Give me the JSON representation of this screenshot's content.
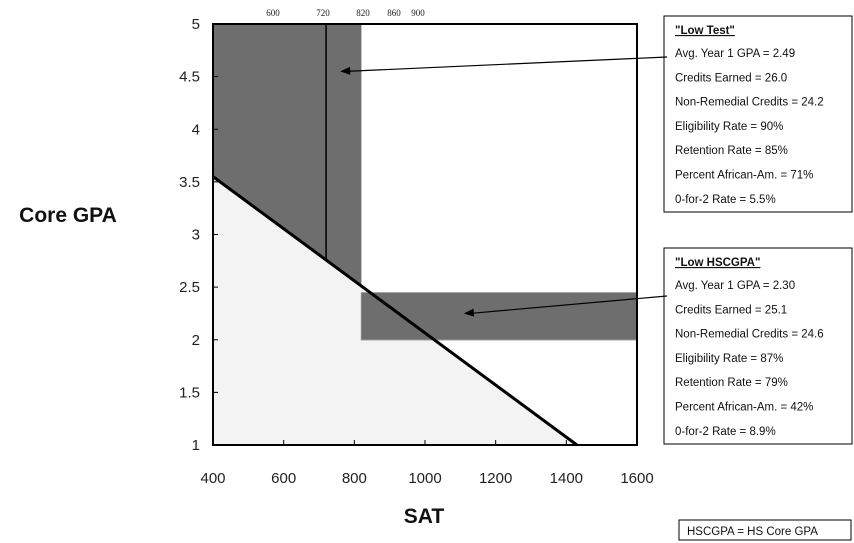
{
  "chart_data": {
    "type": "area",
    "title": "",
    "xlabel": "SAT",
    "ylabel": "Core GPA",
    "xlim": [
      400,
      1600
    ],
    "ylim": [
      1,
      5
    ],
    "x_ticks": [
      400,
      600,
      800,
      1000,
      1200,
      1400,
      1600
    ],
    "y_ticks": [
      1,
      1.5,
      2,
      2.5,
      3,
      3.5,
      4,
      4.5,
      5
    ],
    "top_ticks": [
      600,
      720,
      820,
      860,
      900
    ],
    "grid": false,
    "eligibility_line": {
      "points": [
        [
          400,
          3.55
        ],
        [
          1430,
          1
        ]
      ]
    },
    "regions": {
      "low_test": {
        "sat_range": [
          400,
          820
        ],
        "gpa_range_top": 5
      },
      "low_hscgpa": {
        "sat_range": [
          820,
          1600
        ],
        "gpa_range": [
          2,
          2.45
        ]
      }
    },
    "reference_lines": {
      "sat_720": {
        "x": 720,
        "y_range": [
          2.75,
          5
        ]
      },
      "sat_820_lower": {
        "x": 820,
        "y_range": [
          2,
          2.45
        ]
      },
      "gpa_2": {
        "y": 2,
        "x_range": [
          820,
          1600
        ]
      }
    },
    "annotations": [
      {
        "id": "low-test",
        "title": "\"Low Test\"",
        "lines": [
          "Avg. Year 1 GPA = 2.49",
          "Credits Earned = 26.0",
          "Non-Remedial Credits = 24.2",
          "Eligibility Rate = 90%",
          "Retention Rate = 85%",
          "Percent African-Am. = 71%",
          "0-for-2 Rate = 5.5%"
        ],
        "arrow_to": [
          760,
          4.55
        ]
      },
      {
        "id": "low-hscgpa",
        "title": "\"Low HSCGPA\"",
        "lines": [
          "Avg. Year 1 GPA = 2.30",
          "Credits Earned = 25.1",
          "Non-Remedial Credits = 24.6",
          "Eligibility Rate = 87%",
          "Retention Rate = 79%",
          "Percent African-Am. = 42%",
          "0-for-2 Rate = 8.9%"
        ],
        "arrow_to": [
          1110,
          2.25
        ]
      }
    ],
    "footnote": "HSCGPA = HS Core GPA",
    "colors": {
      "dark_region": "#6e6e6e",
      "light_region": "#f3f3f3",
      "eligibility_line": "#000000",
      "frame": "#000000"
    }
  }
}
